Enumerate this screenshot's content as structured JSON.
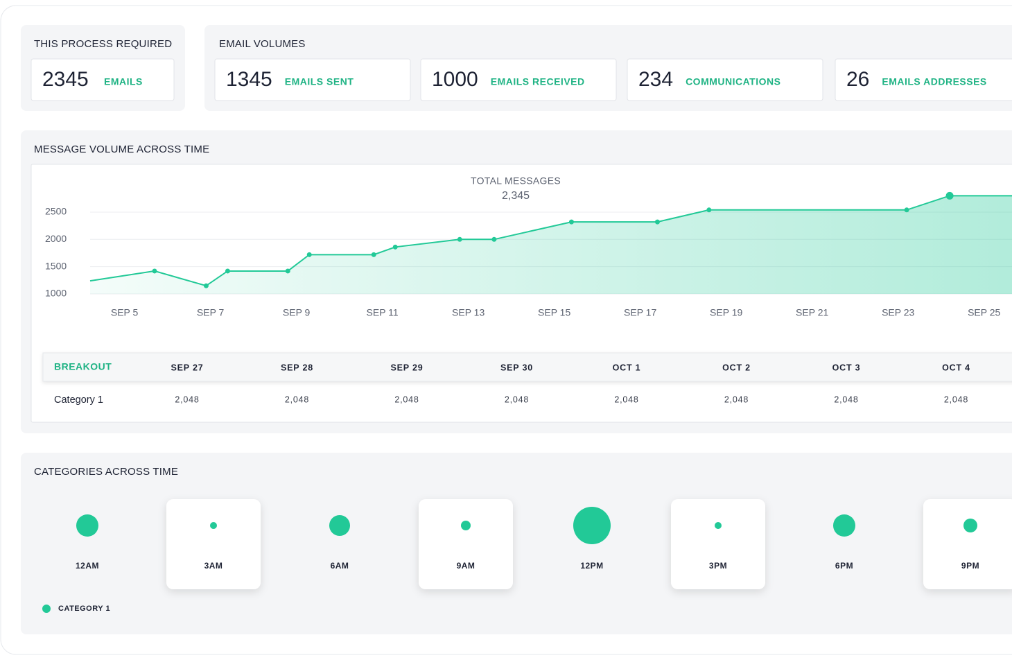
{
  "process": {
    "title": "THIS PROCESS REQUIRED",
    "value": 2345,
    "unit": "EMAILS"
  },
  "volumes": {
    "title": "EMAIL VOLUMES",
    "items": [
      {
        "value": 1345,
        "unit": "EMAILS SENT"
      },
      {
        "value": 1000,
        "unit": "EMAILS RECEIVED"
      },
      {
        "value": 234,
        "unit": "COMMUNICATIONS"
      },
      {
        "value": 26,
        "unit": "EMAILS ADDRESSES"
      }
    ]
  },
  "message_chart": {
    "type": "line",
    "title": "MESSAGE VOLUME ACROSS TIME",
    "subtitle": "TOTAL MESSAGES",
    "total": "2,345",
    "x": [
      4.2,
      5.7,
      6.9,
      7.4,
      8.8,
      9.3,
      10.8,
      11.3,
      12.8,
      13.6,
      15.4,
      17.4,
      18.6,
      23.2,
      24.2,
      25.65
    ],
    "values": [
      1240,
      1420,
      1150,
      1420,
      1420,
      1720,
      1720,
      1860,
      2000,
      2000,
      2320,
      2320,
      2540,
      2540,
      2800,
      2800
    ],
    "color": "#22c997",
    "grid": true,
    "xlim": [
      4.2,
      25.65
    ],
    "xticks": [
      {
        "value": 5,
        "label": "SEP 5"
      },
      {
        "value": 7,
        "label": "SEP 7"
      },
      {
        "value": 9,
        "label": "SEP 9"
      },
      {
        "value": 11,
        "label": "SEP 11"
      },
      {
        "value": 13,
        "label": "SEP 13"
      },
      {
        "value": 15,
        "label": "SEP 15"
      },
      {
        "value": 17,
        "label": "SEP 17"
      },
      {
        "value": 19,
        "label": "SEP 19"
      },
      {
        "value": 21,
        "label": "SEP 21"
      },
      {
        "value": 23,
        "label": "SEP 23"
      },
      {
        "value": 25,
        "label": "SEP 25"
      }
    ],
    "ylim": [
      1000,
      3000
    ],
    "yticks": [
      1000,
      1500,
      2000,
      2500
    ]
  },
  "breakout": {
    "header": "BREAKOUT",
    "columns": [
      "SEP 27",
      "SEP 28",
      "SEP 29",
      "SEP 30",
      "OCT 1",
      "OCT 2",
      "OCT 3",
      "OCT 4"
    ],
    "rows": [
      {
        "label": "Category 1",
        "cells": [
          "2,048",
          "2,048",
          "2,048",
          "2,048",
          "2,048",
          "2,048",
          "2,048",
          "2,048"
        ]
      }
    ]
  },
  "categories_chart": {
    "type": "bubble",
    "title": "CATEGORIES ACROSS TIME",
    "categories": [
      "12AM",
      "3AM",
      "6AM",
      "9AM",
      "12PM",
      "3PM",
      "6PM",
      "9PM"
    ],
    "series": [
      {
        "name": "CATEGORY 1",
        "color": "#22c997",
        "values": [
          16,
          5,
          15,
          7,
          27,
          5,
          16,
          10
        ]
      }
    ]
  }
}
